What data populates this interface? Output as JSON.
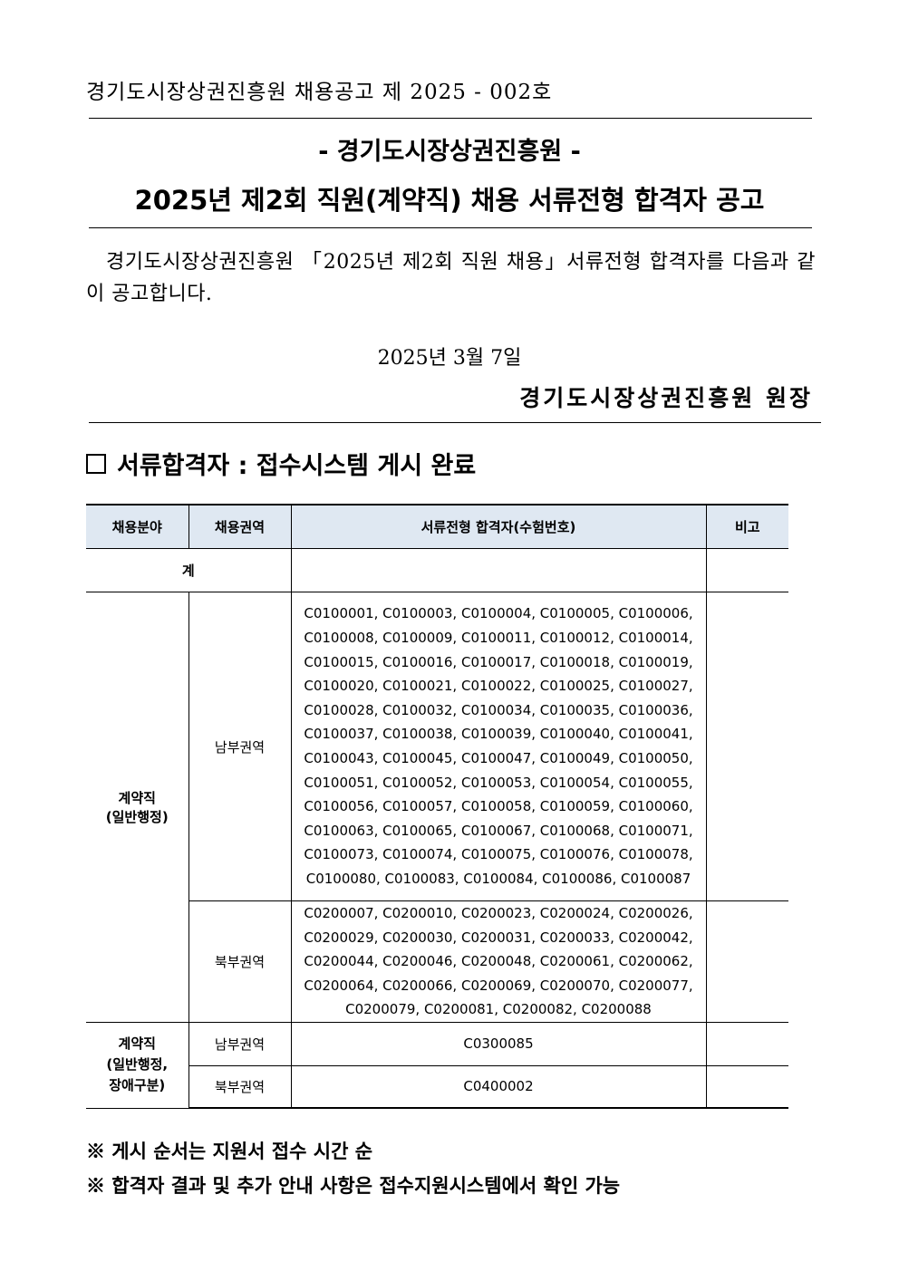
{
  "header": {
    "doc_number": "경기도시장상권진흥원 채용공고 제 2025 - 002호",
    "title_org": "- 경기도시장상권진흥원 -",
    "title_main": "2025년 제2회 직원(계약직) 채용 서류전형 합격자 공고"
  },
  "body": {
    "text": "경기도시장상권진흥원 「2025년 제2회 직원 채용」서류전형 합격자를 다음과 같이 공고합니다.",
    "date": "2025년   3월   7일",
    "signer": "경기도시장상권진흥원 원장"
  },
  "section": {
    "checkbox_icon": "empty-square",
    "title": "서류합격자 : 접수시스템 게시 완료"
  },
  "table": {
    "header_bg": "#dfe8f2",
    "columns": [
      "채용분야",
      "채용권역",
      "서류전형 합격자(수험번호)",
      "비고"
    ],
    "total_label": "계",
    "groups": [
      {
        "field": [
          "계약직",
          "(일반행정)"
        ],
        "regions": [
          {
            "region": "남부권역",
            "lines": [
              "C0100001, C0100003, C0100004, C0100005, C0100006,",
              "C0100008, C0100009, C0100011, C0100012, C0100014,",
              "C0100015, C0100016, C0100017, C0100018, C0100019,",
              "C0100020, C0100021, C0100022, C0100025, C0100027,",
              "C0100028, C0100032, C0100034, C0100035, C0100036,",
              "C0100037, C0100038, C0100039, C0100040, C0100041,",
              "C0100043, C0100045, C0100047, C0100049, C0100050,",
              "C0100051, C0100052, C0100053, C0100054, C0100055,",
              "C0100056, C0100057, C0100058, C0100059, C0100060,",
              "C0100063, C0100065, C0100067, C0100068, C0100071,",
              "C0100073, C0100074, C0100075, C0100076, C0100078,",
              "C0100080, C0100083, C0100084, C0100086, C0100087"
            ],
            "note": ""
          },
          {
            "region": "북부권역",
            "lines": [
              "C0200007, C0200010, C0200023, C0200024, C0200026,",
              "C0200029, C0200030, C0200031, C0200033, C0200042,",
              "C0200044, C0200046, C0200048, C0200061, C0200062,",
              "C0200064, C0200066, C0200069, C0200070, C0200077,",
              "C0200079, C0200081, C0200082, C0200088"
            ],
            "note": ""
          }
        ]
      },
      {
        "field": [
          "계약직",
          "(일반행정,",
          "장애구분)"
        ],
        "regions": [
          {
            "region": "남부권역",
            "lines": [
              "C0300085"
            ],
            "note": ""
          },
          {
            "region": "북부권역",
            "lines": [
              "C0400002"
            ],
            "note": ""
          }
        ]
      }
    ]
  },
  "notes": [
    "※ 게시 순서는 지원서 접수 시간 순",
    "※ 합격자 결과 및 추가 안내 사항은 접수지원시스템에서 확인 가능"
  ]
}
